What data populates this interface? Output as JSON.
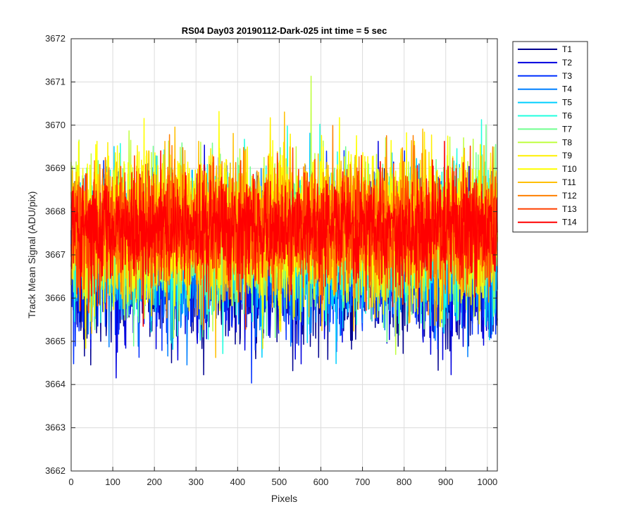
{
  "chart_data": {
    "type": "line",
    "title": "RS04 Day03 20190112-Dark-025 int time = 5 sec",
    "xlabel": "Pixels",
    "ylabel": "Track Mean Signal (ADU/pix)",
    "xlim": [
      0,
      1024
    ],
    "ylim": [
      3662,
      3672
    ],
    "xticks": [
      0,
      100,
      200,
      300,
      400,
      500,
      600,
      700,
      800,
      900,
      1000
    ],
    "yticks": [
      3662,
      3663,
      3664,
      3665,
      3666,
      3667,
      3668,
      3669,
      3670,
      3671,
      3672
    ],
    "grid": true,
    "legend_position": "outside-top-right",
    "points_per_series": 1024,
    "series": [
      {
        "name": "T1",
        "color": "#00008F",
        "mean": 3666.7,
        "std": 0.9
      },
      {
        "name": "T2",
        "color": "#0000DF",
        "mean": 3666.8,
        "std": 0.85
      },
      {
        "name": "T3",
        "color": "#0030FF",
        "mean": 3666.9,
        "std": 0.85
      },
      {
        "name": "T4",
        "color": "#0080FF",
        "mean": 3667.0,
        "std": 0.8
      },
      {
        "name": "T5",
        "color": "#00CFFF",
        "mean": 3667.2,
        "std": 0.8
      },
      {
        "name": "T6",
        "color": "#20FFDF",
        "mean": 3667.3,
        "std": 0.8
      },
      {
        "name": "T7",
        "color": "#70FF8F",
        "mean": 3667.4,
        "std": 0.8
      },
      {
        "name": "T8",
        "color": "#BFFF40",
        "mean": 3667.5,
        "std": 0.8
      },
      {
        "name": "T9",
        "color": "#FFEF00",
        "mean": 3667.6,
        "std": 0.8
      },
      {
        "name": "T10",
        "color": "#FFFF00",
        "mean": 3667.7,
        "std": 0.85
      },
      {
        "name": "T11",
        "color": "#FFBF00",
        "mean": 3667.6,
        "std": 0.8
      },
      {
        "name": "T12",
        "color": "#FF8000",
        "mean": 3667.6,
        "std": 0.75
      },
      {
        "name": "T13",
        "color": "#FF4000",
        "mean": 3667.6,
        "std": 0.7
      },
      {
        "name": "T14",
        "color": "#FF0000",
        "mean": 3667.6,
        "std": 0.6
      }
    ]
  }
}
